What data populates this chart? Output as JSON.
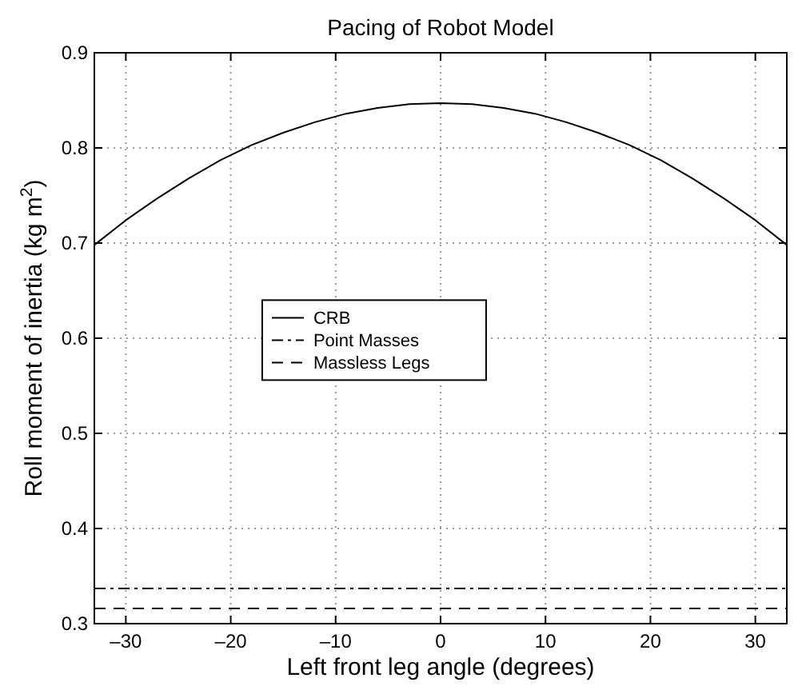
{
  "chart_data": {
    "type": "line",
    "title": "Pacing of Robot Model",
    "xlabel": "Left front leg angle (degrees)",
    "ylabel": "Roll moment of inertia (kg m$^{2}$)",
    "xlim": [
      -33,
      33
    ],
    "ylim": [
      0.3,
      0.9
    ],
    "xticks": [
      {
        "value": -30,
        "label": "–30"
      },
      {
        "value": -20,
        "label": "–20"
      },
      {
        "value": -10,
        "label": "–10"
      },
      0,
      10,
      20,
      30
    ],
    "yticks": [
      0.3,
      0.4,
      0.5,
      0.6,
      0.7,
      0.8,
      0.9
    ],
    "grid": true,
    "legend": "center left",
    "x": [
      -33,
      -30,
      -27,
      -24,
      -21,
      -18,
      -15,
      -12,
      -9,
      -6,
      -3,
      0,
      3,
      6,
      9,
      12,
      15,
      18,
      21,
      24,
      27,
      30,
      33
    ],
    "series": [
      {
        "name": "CRB",
        "color": "#000000",
        "line_style": "solid",
        "values": [
          0.698,
          0.724,
          0.747,
          0.768,
          0.787,
          0.803,
          0.816,
          0.827,
          0.836,
          0.842,
          0.846,
          0.847,
          0.846,
          0.842,
          0.836,
          0.827,
          0.816,
          0.803,
          0.787,
          0.768,
          0.747,
          0.724,
          0.698
        ]
      },
      {
        "name": "Point Masses",
        "color": "#000000",
        "line_style": "dashdot",
        "values": [
          0.337,
          0.337,
          0.337,
          0.337,
          0.337,
          0.337,
          0.337,
          0.337,
          0.337,
          0.337,
          0.337,
          0.337,
          0.337,
          0.337,
          0.337,
          0.337,
          0.337,
          0.337,
          0.337,
          0.337,
          0.337,
          0.337,
          0.337
        ]
      },
      {
        "name": "Massless Legs",
        "color": "#000000",
        "line_style": "dashed",
        "values": [
          0.316,
          0.316,
          0.316,
          0.316,
          0.316,
          0.316,
          0.316,
          0.316,
          0.316,
          0.316,
          0.316,
          0.316,
          0.316,
          0.316,
          0.316,
          0.316,
          0.316,
          0.316,
          0.316,
          0.316,
          0.316,
          0.316,
          0.316
        ]
      }
    ]
  }
}
